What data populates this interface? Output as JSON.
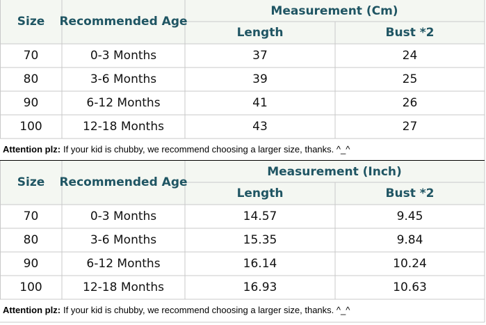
{
  "tables": [
    {
      "header": {
        "size": "Size",
        "age": "Recommended Age",
        "measurement": "Measurement (Cm)",
        "length": "Length",
        "bust": "Bust *2"
      },
      "rows": [
        [
          "70",
          "0-3 Months",
          "37",
          "24"
        ],
        [
          "80",
          "3-6 Months",
          "39",
          "25"
        ],
        [
          "90",
          "6-12 Months",
          "41",
          "26"
        ],
        [
          "100",
          "12-18 Months",
          "43",
          "27"
        ]
      ],
      "note": {
        "label": "Attention plz:",
        "text": "If your kid is chubby, we recommend choosing a larger size, thanks. ^_^"
      }
    },
    {
      "header": {
        "size": "Size",
        "age": "Recommended Age",
        "measurement": "Measurement (Inch)",
        "length": "Length",
        "bust": "Bust *2"
      },
      "rows": [
        [
          "70",
          "0-3 Months",
          "14.57",
          "9.45"
        ],
        [
          "80",
          "3-6 Months",
          "15.35",
          "9.84"
        ],
        [
          "90",
          "6-12 Months",
          "16.14",
          "10.24"
        ],
        [
          "100",
          "12-18 Months",
          "16.93",
          "10.63"
        ]
      ],
      "note": {
        "label": "Attention plz:",
        "text": "If your kid is chubby, we recommend choosing a larger size, thanks. ^_^"
      }
    }
  ]
}
